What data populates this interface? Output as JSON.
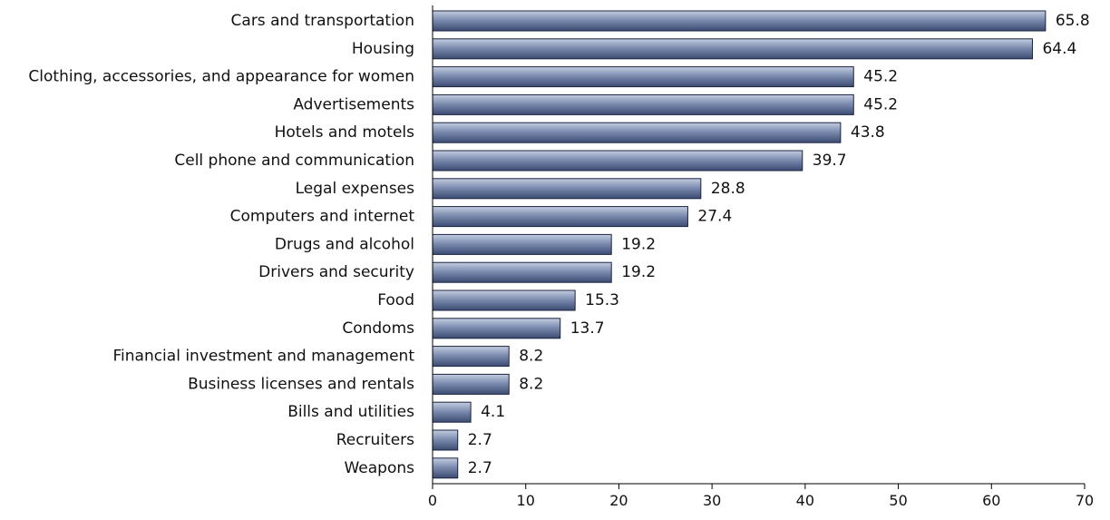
{
  "chart_data": {
    "type": "bar",
    "orientation": "horizontal",
    "title": "",
    "xlabel": "",
    "ylabel": "",
    "categories": [
      "Cars and transportation",
      "Housing",
      "Clothing, accessories, and appearance for women",
      "Advertisements",
      "Hotels and motels",
      "Cell phone and communication",
      "Legal expenses",
      "Computers and internet",
      "Drugs and alcohol",
      "Drivers and security",
      "Food",
      "Condoms",
      "Financial investment and management",
      "Business licenses and rentals",
      "Bills and utilities",
      "Recruiters",
      "Weapons"
    ],
    "values": [
      65.8,
      64.4,
      45.2,
      45.2,
      43.8,
      39.7,
      28.8,
      27.4,
      19.2,
      19.2,
      15.3,
      13.7,
      8.2,
      8.2,
      4.1,
      2.7,
      2.7
    ],
    "value_labels": [
      "65.8",
      "64.4",
      "45.2",
      "45.2",
      "43.8",
      "39.7",
      "28.8",
      "27.4",
      "19.2",
      "19.2",
      "15.3",
      "13.7",
      "8.2",
      "8.2",
      "4.1",
      "2.7",
      "2.7"
    ],
    "xlim": [
      0,
      70
    ],
    "xticks": [
      0,
      10,
      20,
      30,
      40,
      50,
      60,
      70
    ],
    "xtick_labels": [
      "0",
      "10",
      "20",
      "30",
      "40",
      "50",
      "60",
      "70"
    ],
    "grid": false,
    "legend": "none",
    "colors": {
      "bar_light": "#c3cde0",
      "bar_mid": "#7d8db0",
      "bar_dark": "#3c4b73",
      "bar_border": "#1b2440",
      "axis": "#000000",
      "text": "#111111"
    }
  }
}
